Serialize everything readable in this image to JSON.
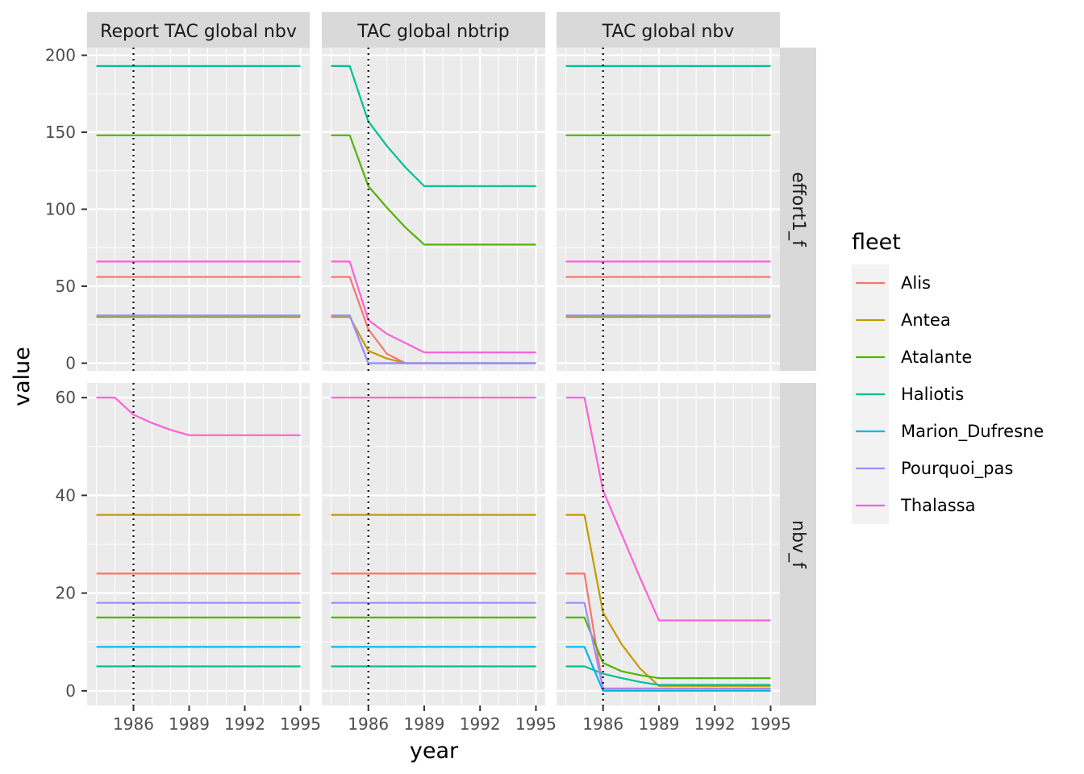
{
  "chart_data": {
    "type": "line",
    "xlabel": "year",
    "ylabel": "value",
    "x_ticks": [
      "1986",
      "1989",
      "1992",
      "1995"
    ],
    "x_range": [
      1983.5,
      1995.5
    ],
    "vline": {
      "x": 1986,
      "style": "dotted"
    },
    "grid": true,
    "legend": {
      "title": "fleet",
      "placement": "right"
    },
    "col_facets": [
      "Report TAC global nbv",
      "TAC global nbtrip",
      "TAC global nbv"
    ],
    "row_facets": [
      {
        "label": "effort1_f",
        "ylim": [
          -5,
          205
        ],
        "y_ticks": [
          "0",
          "50",
          "100",
          "150",
          "200"
        ],
        "y_tick_values": [
          0,
          50,
          100,
          150,
          200
        ]
      },
      {
        "label": "nbv_f",
        "ylim": [
          -3,
          63
        ],
        "y_ticks": [
          "0",
          "20",
          "40",
          "60"
        ],
        "y_tick_values": [
          0,
          20,
          40,
          60
        ]
      }
    ],
    "years": [
      1984,
      1985,
      1986,
      1987,
      1988,
      1989,
      1990,
      1991,
      1992,
      1993,
      1994,
      1995
    ],
    "series_names": [
      "Alis",
      "Antea",
      "Atalante",
      "Haliotis",
      "Marion_Dufresne",
      "Pourquoi_pas",
      "Thalassa"
    ],
    "colors": [
      "#F8766D",
      "#C49A00",
      "#53B400",
      "#00C094",
      "#00B6EB",
      "#A58AFF",
      "#FB61D7"
    ],
    "panels": [
      {
        "row": 0,
        "col": 0,
        "series": [
          {
            "name": "Alis",
            "values": [
              56,
              56,
              56,
              56,
              56,
              56,
              56,
              56,
              56,
              56,
              56,
              56
            ]
          },
          {
            "name": "Antea",
            "values": [
              30,
              30,
              30,
              30,
              30,
              30,
              30,
              30,
              30,
              30,
              30,
              30
            ]
          },
          {
            "name": "Atalante",
            "values": [
              148,
              148,
              148,
              148,
              148,
              148,
              148,
              148,
              148,
              148,
              148,
              148
            ]
          },
          {
            "name": "Haliotis",
            "values": [
              193,
              193,
              193,
              193,
              193,
              193,
              193,
              193,
              193,
              193,
              193,
              193
            ]
          },
          {
            "name": "Marion_Dufresne",
            "values": [
              31,
              31,
              31,
              31,
              31,
              31,
              31,
              31,
              31,
              31,
              31,
              31
            ]
          },
          {
            "name": "Pourquoi_pas",
            "values": [
              31,
              31,
              31,
              31,
              31,
              31,
              31,
              31,
              31,
              31,
              31,
              31
            ]
          },
          {
            "name": "Thalassa",
            "values": [
              66,
              66,
              66,
              66,
              66,
              66,
              66,
              66,
              66,
              66,
              66,
              66
            ]
          }
        ]
      },
      {
        "row": 0,
        "col": 1,
        "series": [
          {
            "name": "Alis",
            "values": [
              56,
              56,
              22,
              6,
              0,
              0,
              0,
              0,
              0,
              0,
              0,
              0
            ]
          },
          {
            "name": "Antea",
            "values": [
              30,
              30,
              8,
              3,
              0,
              0,
              0,
              0,
              0,
              0,
              0,
              0
            ]
          },
          {
            "name": "Atalante",
            "values": [
              148,
              148,
              115,
              101,
              88,
              77,
              77,
              77,
              77,
              77,
              77,
              77
            ]
          },
          {
            "name": "Haliotis",
            "values": [
              193,
              193,
              157,
              141,
              127,
              115,
              115,
              115,
              115,
              115,
              115,
              115
            ]
          },
          {
            "name": "Marion_Dufresne",
            "values": [
              31,
              31,
              0,
              0,
              0,
              0,
              0,
              0,
              0,
              0,
              0,
              0
            ]
          },
          {
            "name": "Pourquoi_pas",
            "values": [
              31,
              31,
              0,
              0,
              0,
              0,
              0,
              0,
              0,
              0,
              0,
              0
            ]
          },
          {
            "name": "Thalassa",
            "values": [
              66,
              66,
              28,
              19,
              13,
              7,
              7,
              7,
              7,
              7,
              7,
              7
            ]
          }
        ]
      },
      {
        "row": 0,
        "col": 2,
        "series": [
          {
            "name": "Alis",
            "values": [
              56,
              56,
              56,
              56,
              56,
              56,
              56,
              56,
              56,
              56,
              56,
              56
            ]
          },
          {
            "name": "Antea",
            "values": [
              30,
              30,
              30,
              30,
              30,
              30,
              30,
              30,
              30,
              30,
              30,
              30
            ]
          },
          {
            "name": "Atalante",
            "values": [
              148,
              148,
              148,
              148,
              148,
              148,
              148,
              148,
              148,
              148,
              148,
              148
            ]
          },
          {
            "name": "Haliotis",
            "values": [
              193,
              193,
              193,
              193,
              193,
              193,
              193,
              193,
              193,
              193,
              193,
              193
            ]
          },
          {
            "name": "Marion_Dufresne",
            "values": [
              31,
              31,
              31,
              31,
              31,
              31,
              31,
              31,
              31,
              31,
              31,
              31
            ]
          },
          {
            "name": "Pourquoi_pas",
            "values": [
              31,
              31,
              31,
              31,
              31,
              31,
              31,
              31,
              31,
              31,
              31,
              31
            ]
          },
          {
            "name": "Thalassa",
            "values": [
              66,
              66,
              66,
              66,
              66,
              66,
              66,
              66,
              66,
              66,
              66,
              66
            ]
          }
        ]
      },
      {
        "row": 1,
        "col": 0,
        "series": [
          {
            "name": "Alis",
            "values": [
              24,
              24,
              24,
              24,
              24,
              24,
              24,
              24,
              24,
              24,
              24,
              24
            ]
          },
          {
            "name": "Antea",
            "values": [
              36,
              36,
              36,
              36,
              36,
              36,
              36,
              36,
              36,
              36,
              36,
              36
            ]
          },
          {
            "name": "Atalante",
            "values": [
              15,
              15,
              15,
              15,
              15,
              15,
              15,
              15,
              15,
              15,
              15,
              15
            ]
          },
          {
            "name": "Haliotis",
            "values": [
              5,
              5,
              5,
              5,
              5,
              5,
              5,
              5,
              5,
              5,
              5,
              5
            ]
          },
          {
            "name": "Marion_Dufresne",
            "values": [
              9,
              9,
              9,
              9,
              9,
              9,
              9,
              9,
              9,
              9,
              9,
              9
            ]
          },
          {
            "name": "Pourquoi_pas",
            "values": [
              18,
              18,
              18,
              18,
              18,
              18,
              18,
              18,
              18,
              18,
              18,
              18
            ]
          },
          {
            "name": "Thalassa",
            "values": [
              60,
              60,
              56.5,
              54.8,
              53.4,
              52.3,
              52.3,
              52.3,
              52.3,
              52.3,
              52.3,
              52.3
            ]
          }
        ]
      },
      {
        "row": 1,
        "col": 1,
        "series": [
          {
            "name": "Alis",
            "values": [
              24,
              24,
              24,
              24,
              24,
              24,
              24,
              24,
              24,
              24,
              24,
              24
            ]
          },
          {
            "name": "Antea",
            "values": [
              36,
              36,
              36,
              36,
              36,
              36,
              36,
              36,
              36,
              36,
              36,
              36
            ]
          },
          {
            "name": "Atalante",
            "values": [
              15,
              15,
              15,
              15,
              15,
              15,
              15,
              15,
              15,
              15,
              15,
              15
            ]
          },
          {
            "name": "Haliotis",
            "values": [
              5,
              5,
              5,
              5,
              5,
              5,
              5,
              5,
              5,
              5,
              5,
              5
            ]
          },
          {
            "name": "Marion_Dufresne",
            "values": [
              9,
              9,
              9,
              9,
              9,
              9,
              9,
              9,
              9,
              9,
              9,
              9
            ]
          },
          {
            "name": "Pourquoi_pas",
            "values": [
              18,
              18,
              18,
              18,
              18,
              18,
              18,
              18,
              18,
              18,
              18,
              18
            ]
          },
          {
            "name": "Thalassa",
            "values": [
              60,
              60,
              60,
              60,
              60,
              60,
              60,
              60,
              60,
              60,
              60,
              60
            ]
          }
        ]
      },
      {
        "row": 1,
        "col": 2,
        "series": [
          {
            "name": "Alis",
            "values": [
              24,
              24,
              0.5,
              0.5,
              0.5,
              0.5,
              0.5,
              0.5,
              0.5,
              0.5,
              0.5,
              0.5
            ]
          },
          {
            "name": "Antea",
            "values": [
              36,
              36,
              16,
              9.5,
              4.5,
              1,
              1,
              1,
              1,
              1,
              1,
              1
            ]
          },
          {
            "name": "Atalante",
            "values": [
              15,
              15,
              5.7,
              4,
              3.2,
              2.6,
              2.6,
              2.6,
              2.6,
              2.6,
              2.6,
              2.6
            ]
          },
          {
            "name": "Haliotis",
            "values": [
              5,
              5,
              3.5,
              2.6,
              1.8,
              1.2,
              1.2,
              1.2,
              1.2,
              1.2,
              1.2,
              1.2
            ]
          },
          {
            "name": "Marion_Dufresne",
            "values": [
              9,
              9,
              0,
              0,
              0,
              0,
              0,
              0,
              0,
              0,
              0,
              0
            ]
          },
          {
            "name": "Pourquoi_pas",
            "values": [
              18,
              18,
              0.4,
              0.4,
              0.4,
              0.4,
              0.4,
              0.4,
              0.4,
              0.4,
              0.4,
              0.4
            ]
          },
          {
            "name": "Thalassa",
            "values": [
              60,
              60,
              41,
              32,
              23,
              14.4,
              14.4,
              14.4,
              14.4,
              14.4,
              14.4,
              14.4
            ]
          }
        ]
      }
    ]
  }
}
